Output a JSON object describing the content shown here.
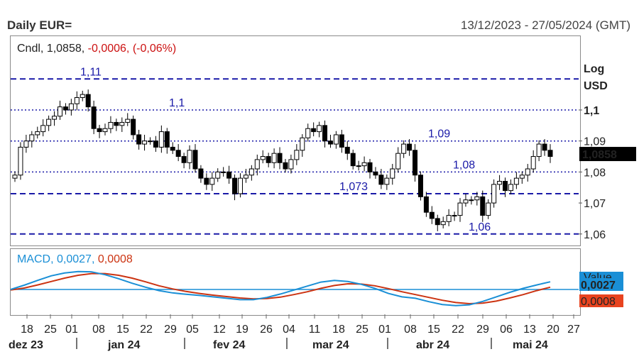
{
  "header": {
    "title": "Daily EUR=",
    "date_range": "13/12/2023 - 27/05/2024 (GMT)"
  },
  "legend": {
    "series": "Cndl,",
    "last": "1,0858,",
    "change": "-0,0006, (-0,06%)"
  },
  "macd_legend": {
    "label": "MACD,",
    "macd": "0,0027,",
    "signal": "0,0008"
  },
  "colors": {
    "level_line": "#1a1aa8",
    "macd_line": "#1a8fd6",
    "signal_line": "#cc3311",
    "zero_line": "#1a8fd6",
    "candle": "#000000",
    "last_price_badge": "#000000",
    "negative_text": "#cc1111"
  },
  "chart_data": {
    "type": "candlestick",
    "title": "Daily EUR=",
    "yscale": "log",
    "ylabel": "Log USD",
    "ylim": [
      1.055,
      1.117
    ],
    "y_ticks": [
      "1,1",
      "1,09",
      "1,08",
      "1,07",
      "1,06"
    ],
    "x_ticks": [
      "18",
      "25",
      "01",
      "08",
      "15",
      "22",
      "29",
      "05",
      "12",
      "19",
      "26",
      "04",
      "11",
      "18",
      "25",
      "01",
      "08",
      "15",
      "22",
      "29",
      "06",
      "13",
      "20",
      "27"
    ],
    "months": [
      "dez 23",
      "jan 24",
      "fev 24",
      "mar 24",
      "abr 24",
      "mai 24"
    ],
    "last_price": "1,0858",
    "levels": [
      {
        "value": 1.11,
        "label": "1,11",
        "style": "dashed"
      },
      {
        "value": 1.1,
        "label": "1,1",
        "style": "dotted"
      },
      {
        "value": 1.09,
        "label": "1,09",
        "style": "dotted"
      },
      {
        "value": 1.08,
        "label": "1,08",
        "style": "dotted"
      },
      {
        "value": 1.073,
        "label": "1,073",
        "style": "dashed"
      },
      {
        "value": 1.06,
        "label": "1,06",
        "style": "dashed"
      }
    ],
    "close_path": [
      1.079,
      1.088,
      1.09,
      1.092,
      1.093,
      1.095,
      1.097,
      1.098,
      1.101,
      1.1,
      1.102,
      1.104,
      1.105,
      1.101,
      1.094,
      1.093,
      1.094,
      1.096,
      1.095,
      1.096,
      1.097,
      1.092,
      1.089,
      1.09,
      1.09,
      1.088,
      1.093,
      1.088,
      1.087,
      1.085,
      1.083,
      1.087,
      1.081,
      1.078,
      1.076,
      1.078,
      1.08,
      1.08,
      1.078,
      1.073,
      1.078,
      1.079,
      1.081,
      1.084,
      1.085,
      1.083,
      1.086,
      1.083,
      1.081,
      1.084,
      1.087,
      1.091,
      1.094,
      1.093,
      1.095,
      1.09,
      1.089,
      1.092,
      1.088,
      1.086,
      1.082,
      1.082,
      1.083,
      1.08,
      1.079,
      1.076,
      1.078,
      1.081,
      1.086,
      1.089,
      1.087,
      1.079,
      1.072,
      1.067,
      1.065,
      1.063,
      1.064,
      1.066,
      1.066,
      1.07,
      1.071,
      1.071,
      1.072,
      1.066,
      1.07,
      1.076,
      1.077,
      1.074,
      1.076,
      1.078,
      1.079,
      1.081,
      1.085,
      1.089,
      1.087,
      1.085
    ],
    "macd": {
      "name": "MACD",
      "current": "0,0027",
      "signal_current": "0,0008",
      "right_labels": [
        "Value",
        "0,0027",
        "0,0008"
      ],
      "macd_series": [
        0.0,
        0.0015,
        0.0032,
        0.0048,
        0.0058,
        0.0063,
        0.0062,
        0.0052,
        0.0038,
        0.0022,
        0.0008,
        -0.0004,
        -0.0012,
        -0.0017,
        -0.0021,
        -0.0026,
        -0.0031,
        -0.0036,
        -0.0036,
        -0.0028,
        -0.0016,
        -0.0002,
        0.0012,
        0.0026,
        0.0032,
        0.0028,
        0.0018,
        0.0004,
        -0.0014,
        -0.0026,
        -0.0031,
        -0.0043,
        -0.0053,
        -0.0057,
        -0.0054,
        -0.0042,
        -0.0026,
        -0.001,
        0.0004,
        0.0016,
        0.0027
      ],
      "signal_series": [
        -0.0002,
        0.0005,
        0.0016,
        0.0028,
        0.004,
        0.005,
        0.0056,
        0.0056,
        0.005,
        0.004,
        0.0027,
        0.0013,
        0.0002,
        -0.0007,
        -0.0014,
        -0.002,
        -0.0025,
        -0.003,
        -0.0033,
        -0.0032,
        -0.0027,
        -0.0018,
        -0.0008,
        0.0004,
        0.0014,
        0.002,
        0.0019,
        0.0013,
        0.0003,
        -0.0008,
        -0.0018,
        -0.0028,
        -0.0038,
        -0.0046,
        -0.005,
        -0.0048,
        -0.0041,
        -0.003,
        -0.0018,
        -0.0004,
        0.0008
      ]
    }
  }
}
